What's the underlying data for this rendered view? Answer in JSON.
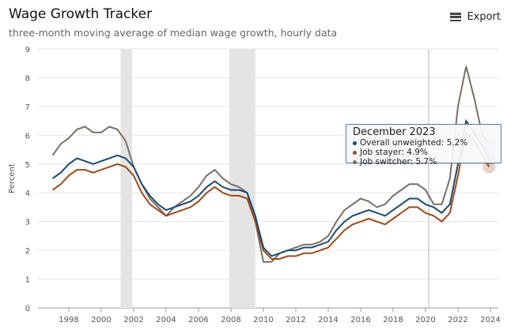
{
  "header": {
    "title": "Wage Growth Tracker",
    "subtitle": "three-month moving average of median wage growth, hourly data",
    "export_label": "Export",
    "menu_icon": "hamburger-icon"
  },
  "tooltip": {
    "title": "December 2023",
    "lines": [
      "Overall unweighted: 5.2%",
      "Job stayer: 4.9%",
      "Job switcher: 5.7%"
    ]
  },
  "chart_data": {
    "type": "line",
    "title": "Wage Growth Tracker",
    "ylabel": "Percent",
    "xlabel": "",
    "ylim": [
      0,
      9
    ],
    "xlim": [
      1996.5,
      2024.3
    ],
    "yticks": [
      "0",
      "1",
      "2",
      "3",
      "4",
      "5",
      "6",
      "7",
      "8",
      "9"
    ],
    "xticks": [
      "1998",
      "2000",
      "2002",
      "2004",
      "2006",
      "2008",
      "2010",
      "2012",
      "2014",
      "2016",
      "2018",
      "2020",
      "2022",
      "2024"
    ],
    "recessions": [
      [
        2001.2,
        2001.9
      ],
      [
        2007.9,
        2009.5
      ]
    ],
    "marker_line": 2020.2,
    "x": [
      1997,
      1997.5,
      1998,
      1998.5,
      1999,
      1999.5,
      2000,
      2000.5,
      2001,
      2001.5,
      2002,
      2002.5,
      2003,
      2003.5,
      2004,
      2004.5,
      2005,
      2005.5,
      2006,
      2006.5,
      2007,
      2007.5,
      2008,
      2008.5,
      2009,
      2009.5,
      2010,
      2010.5,
      2011,
      2011.5,
      2012,
      2012.5,
      2013,
      2013.5,
      2014,
      2014.5,
      2015,
      2015.5,
      2016,
      2016.5,
      2017,
      2017.5,
      2018,
      2018.5,
      2019,
      2019.5,
      2020,
      2020.5,
      2021,
      2021.5,
      2022,
      2022.5,
      2023,
      2023.5,
      2023.92
    ],
    "series": [
      {
        "name": "Overall unweighted",
        "color": "#1c4a6e",
        "values": [
          4.5,
          4.7,
          5.0,
          5.2,
          5.1,
          5.0,
          5.1,
          5.2,
          5.3,
          5.2,
          4.9,
          4.3,
          3.9,
          3.6,
          3.4,
          3.5,
          3.6,
          3.7,
          3.9,
          4.2,
          4.4,
          4.2,
          4.1,
          4.1,
          4.0,
          3.2,
          2.1,
          1.8,
          1.9,
          2.0,
          2.0,
          2.1,
          2.1,
          2.2,
          2.3,
          2.7,
          3.0,
          3.2,
          3.3,
          3.4,
          3.3,
          3.2,
          3.4,
          3.6,
          3.8,
          3.8,
          3.6,
          3.5,
          3.3,
          3.6,
          5.0,
          6.5,
          6.1,
          5.6,
          5.2
        ]
      },
      {
        "name": "Job stayer",
        "color": "#9c4a1c",
        "values": [
          4.1,
          4.3,
          4.6,
          4.8,
          4.8,
          4.7,
          4.8,
          4.9,
          5.0,
          4.9,
          4.6,
          4.0,
          3.6,
          3.4,
          3.2,
          3.3,
          3.4,
          3.5,
          3.7,
          4.0,
          4.2,
          4.0,
          3.9,
          3.9,
          3.8,
          3.0,
          2.0,
          1.7,
          1.7,
          1.8,
          1.8,
          1.9,
          1.9,
          2.0,
          2.1,
          2.4,
          2.7,
          2.9,
          3.0,
          3.1,
          3.0,
          2.9,
          3.1,
          3.3,
          3.5,
          3.5,
          3.3,
          3.2,
          3.0,
          3.3,
          4.6,
          6.1,
          5.8,
          5.3,
          4.9
        ]
      },
      {
        "name": "Job switcher",
        "color": "#7a6f66",
        "values": [
          5.3,
          5.7,
          5.9,
          6.2,
          6.3,
          6.1,
          6.1,
          6.3,
          6.2,
          5.8,
          4.9,
          4.3,
          3.8,
          3.5,
          3.2,
          3.5,
          3.7,
          3.9,
          4.2,
          4.6,
          4.8,
          4.5,
          4.3,
          4.2,
          4.0,
          3.0,
          1.6,
          1.6,
          1.9,
          2.0,
          2.1,
          2.2,
          2.2,
          2.3,
          2.5,
          3.0,
          3.4,
          3.6,
          3.8,
          3.7,
          3.5,
          3.6,
          3.9,
          4.1,
          4.3,
          4.3,
          4.1,
          3.6,
          3.6,
          4.5,
          7.0,
          8.4,
          7.3,
          6.0,
          5.7
        ]
      }
    ]
  }
}
